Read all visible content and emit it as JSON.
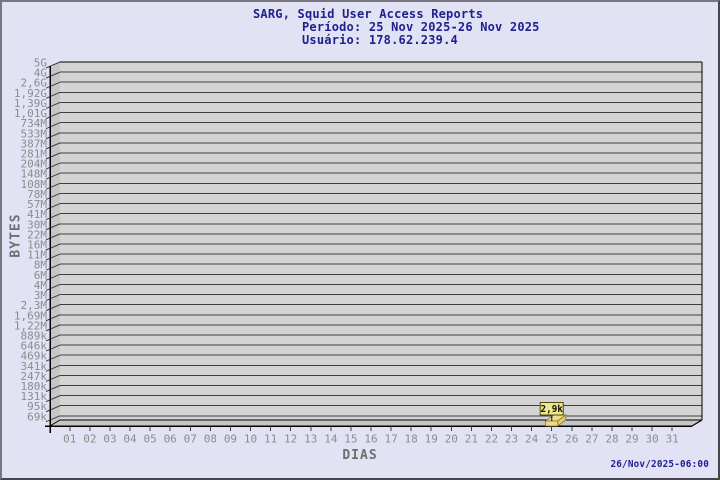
{
  "header": {
    "title": "SARG, Squid User Access Reports",
    "period": "Período: 25 Nov 2025-26 Nov 2025",
    "user": "Usuário: 178.62.239.4"
  },
  "footer": {
    "timestamp": "26/Nov/2025-06:00"
  },
  "chart_data": {
    "type": "bar",
    "title": "SARG, Squid User Access Reports",
    "subtitle": "Período: 25 Nov 2025-26 Nov 2025 — Usuário: 178.62.239.4",
    "xlabel": "DIAS",
    "ylabel": "BYTES",
    "yscale": "log",
    "ylim": [
      "69k",
      "5G"
    ],
    "grid": true,
    "legend_position": "none",
    "x_tick_labels": [
      "01",
      "02",
      "03",
      "04",
      "05",
      "06",
      "07",
      "08",
      "09",
      "10",
      "11",
      "12",
      "13",
      "14",
      "15",
      "16",
      "17",
      "18",
      "19",
      "20",
      "21",
      "22",
      "23",
      "24",
      "25",
      "26",
      "27",
      "28",
      "29",
      "30",
      "31"
    ],
    "y_tick_labels": [
      "5G",
      "4G",
      "2,6G",
      "1,92G",
      "1,39G",
      "1,01G",
      "734M",
      "533M",
      "387M",
      "281M",
      "204M",
      "148M",
      "108M",
      "78M",
      "57M",
      "41M",
      "30M",
      "22M",
      "16M",
      "11M",
      "8M",
      "6M",
      "4M",
      "3M",
      "2,3M",
      "1,69M",
      "1,22M",
      "889k",
      "646k",
      "469k",
      "341k",
      "247k",
      "180k",
      "131k",
      "95k",
      "69k"
    ],
    "bars": [
      {
        "day": "25",
        "value_label": "2,9k",
        "value_bytes": 2900
      }
    ],
    "colors": {
      "background": "#e2e2f5",
      "plot_fill": "#d4d4d4",
      "wall_fill": "#c6c6c6",
      "grid_line": "#3f3f3f",
      "axis_line": "#000000",
      "tick_label": "#8c8c8c",
      "axis_title": "#6e6e6e",
      "title_text": "#202090",
      "bar_fill": "#eedc8c",
      "bar_side": "#e3cd74",
      "bar_border": "#8a7a30",
      "value_box_fill": "#f0e68c",
      "value_box_border": "#4a4a10",
      "value_text": "#111111"
    }
  }
}
